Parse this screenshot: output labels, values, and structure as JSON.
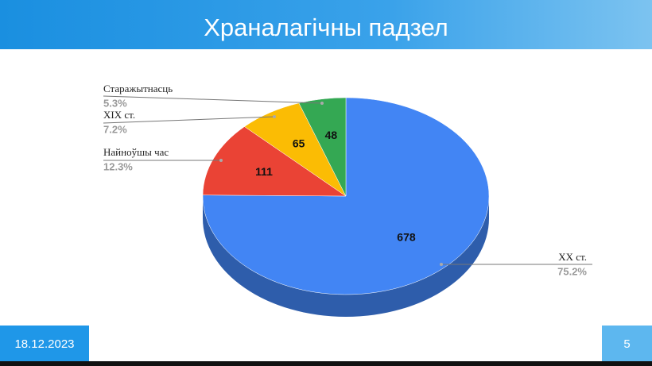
{
  "header": {
    "title": "Храналагічны падзел"
  },
  "chart_data": {
    "type": "pie",
    "categories": [
      "XX ст.",
      "Найноўшы час",
      "XIX ст.",
      "Старажытнасць"
    ],
    "values": [
      678,
      111,
      65,
      48
    ],
    "percent_labels": [
      "75.2%",
      "12.3%",
      "7.2%",
      "5.3%"
    ],
    "colors": [
      "#4285f4",
      "#ea4335",
      "#fbbc04",
      "#34a853"
    ]
  },
  "footer": {
    "date": "18.12.2023",
    "page": "5"
  }
}
